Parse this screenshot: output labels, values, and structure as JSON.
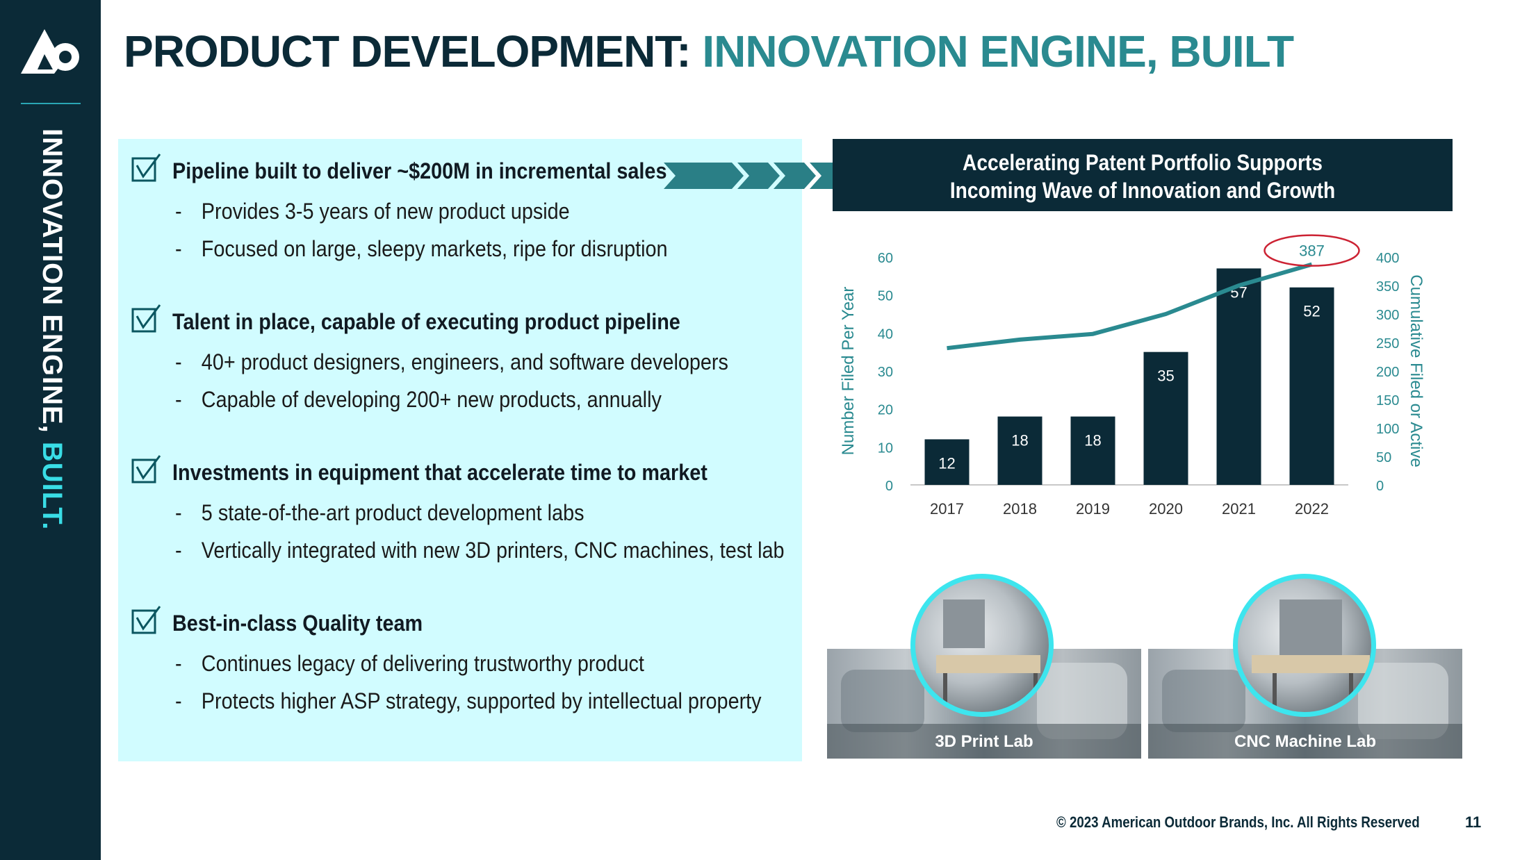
{
  "sidebar": {
    "logo_icon": "ao-brand-logo-icon",
    "vertical_title_main": "INNOVATION ENGINE, ",
    "vertical_title_accent": "BUILT."
  },
  "title": {
    "part1": "PRODUCT DEVELOPMENT: ",
    "part2": "INNOVATION ENGINE, BUILT"
  },
  "sections": [
    {
      "heading": "Pipeline built to deliver ~$200M in incremental sales",
      "bullets": [
        "Provides 3-5 years of new product upside",
        "Focused on large, sleepy markets, ripe for disruption"
      ]
    },
    {
      "heading": "Talent in place, capable of executing product pipeline",
      "bullets": [
        "40+ product designers, engineers, and software developers",
        "Capable of developing 200+ new products, annually"
      ]
    },
    {
      "heading": "Investments in equipment that accelerate time to market",
      "bullets": [
        "5 state-of-the-art product development labs",
        "Vertically integrated with new 3D printers, CNC machines, test lab"
      ]
    },
    {
      "heading": "Best-in-class Quality team",
      "bullets": [
        "Continues legacy of delivering trustworthy product",
        "Protects higher ASP strategy, supported by intellectual property"
      ]
    }
  ],
  "bullet_dash": "-",
  "chart_header": {
    "line1": "Accelerating Patent Portfolio Supports",
    "line2": "Incoming Wave of Innovation and Growth"
  },
  "chart_data": {
    "type": "bar",
    "categories": [
      "2017",
      "2018",
      "2019",
      "2020",
      "2021",
      "2022"
    ],
    "series": [
      {
        "values": [
          12,
          18,
          18,
          35,
          57,
          52
        ],
        "axis": "left"
      },
      {
        "values": [
          240,
          255,
          265,
          300,
          350,
          387
        ],
        "axis": "right",
        "type": "line"
      }
    ],
    "line_annotation": "387",
    "ylabel": "Number Filed Per Year",
    "ylabel_right": "Cumulative Filed or Active",
    "ylim": [
      0,
      60
    ],
    "ylim_right": [
      0,
      400
    ],
    "yticks": [
      "0",
      "10",
      "20",
      "30",
      "40",
      "50",
      "60"
    ],
    "yticks_right": [
      "0",
      "50",
      "100",
      "150",
      "200",
      "250",
      "300",
      "350",
      "400"
    ],
    "bar_color": "#0b2a37",
    "line_color": "#2a8a90",
    "annotation_circle_color": "#cc2233",
    "grid": false
  },
  "photos": [
    {
      "caption": "3D Print Lab"
    },
    {
      "caption": "CNC Machine Lab"
    }
  ],
  "footer": {
    "copyright": "© 2023 American Outdoor Brands, Inc. All Rights Reserved",
    "page_number": "11"
  },
  "colors": {
    "navy": "#0b2a37",
    "teal": "#2a8a90",
    "panel": "#d1fcff",
    "accent": "#39dde6"
  }
}
